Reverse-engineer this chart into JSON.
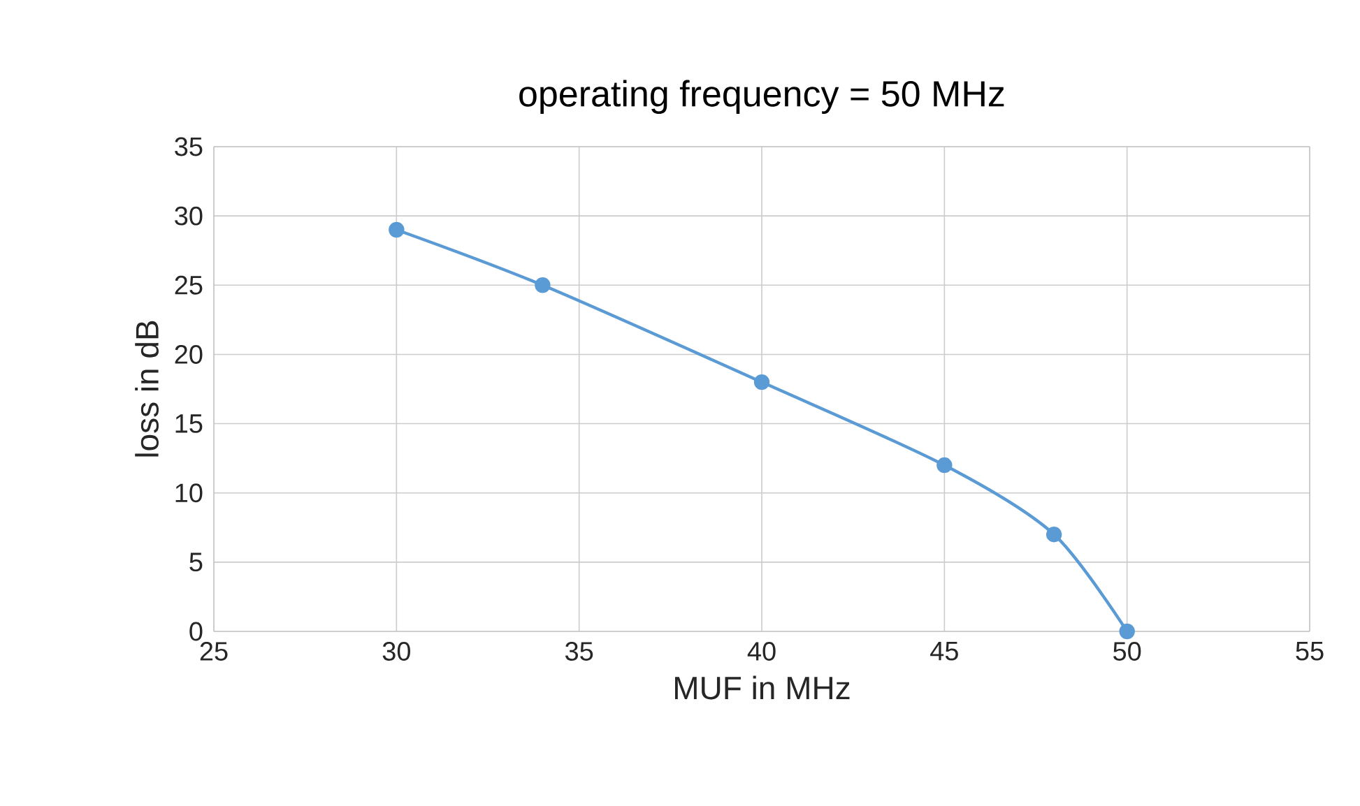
{
  "chart_data": {
    "type": "line",
    "title": "operating frequency = 50 MHz",
    "xlabel": "MUF in MHz",
    "ylabel": "loss in dB",
    "series": [
      {
        "color": "#5b9bd5",
        "x": [
          30,
          34,
          40,
          45,
          48,
          50
        ],
        "values": [
          29,
          25,
          18,
          12,
          7,
          0
        ]
      }
    ],
    "xlim": [
      25,
      55
    ],
    "xticks": [
      25,
      30,
      35,
      40,
      45,
      50,
      55
    ],
    "ylim": [
      0,
      35
    ],
    "yticks": [
      0,
      5,
      10,
      15,
      20,
      25,
      30,
      35
    ],
    "grid": true,
    "marker": "circle",
    "line_style": "solid"
  }
}
